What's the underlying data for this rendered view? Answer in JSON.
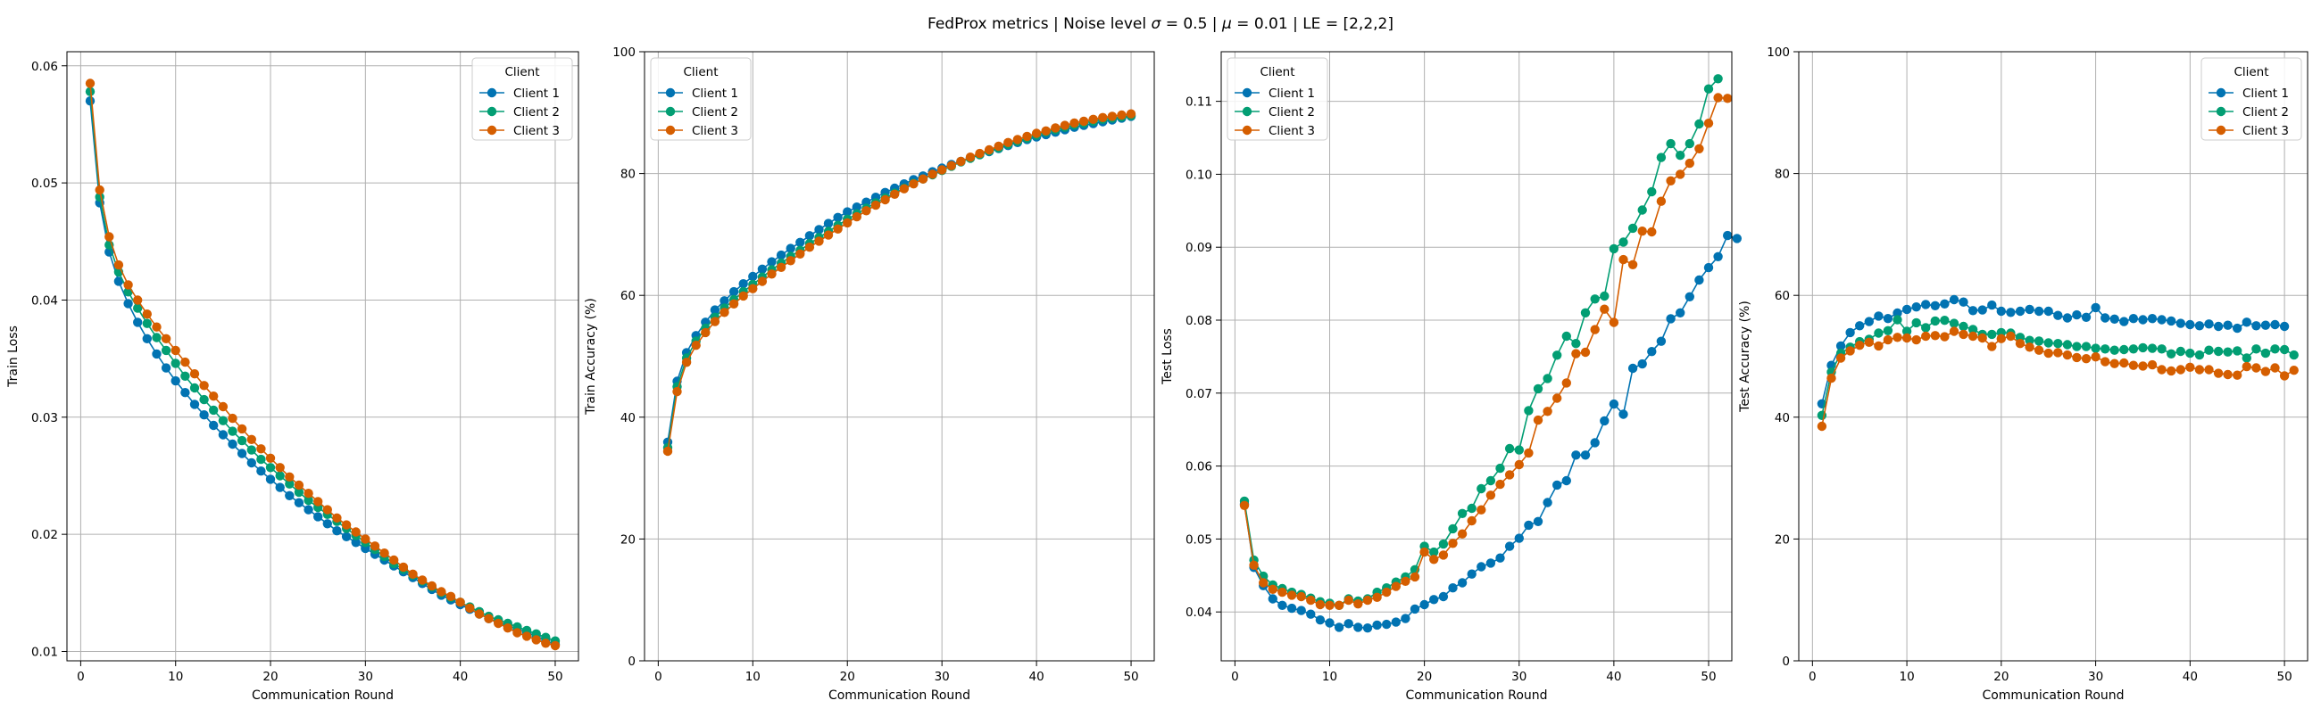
{
  "figure": {
    "suptitle_parts": [
      {
        "t": "FedProx metrics | Noise level ",
        "it": false
      },
      {
        "t": "σ",
        "it": true
      },
      {
        "t": " = 0.5 | ",
        "it": false
      },
      {
        "t": "μ",
        "it": true
      },
      {
        "t": " = 0.01 | LE = [2,2,2]",
        "it": false
      }
    ],
    "colors": {
      "Client 1": "#0173b2",
      "Client 2": "#029e73",
      "Client 3": "#d55e00"
    }
  },
  "chart_data": [
    {
      "type": "line",
      "title": "",
      "xlabel": "Communication Round",
      "ylabel": "Train Loss",
      "xlim": [
        -1.45,
        52.45
      ],
      "ylim": [
        0.0092,
        0.0612
      ],
      "xticks": [
        0,
        10,
        20,
        30,
        40,
        50
      ],
      "yticks": [
        0.01,
        0.02,
        0.03,
        0.04,
        0.05,
        0.06
      ],
      "ytick_labels": [
        "0.01",
        "0.02",
        "0.03",
        "0.04",
        "0.05",
        "0.06"
      ],
      "legend": {
        "title": "Client",
        "position": "top-right"
      },
      "series": [
        {
          "name": "Client 1",
          "values": [
            0.057,
            0.0483,
            0.0441,
            0.0416,
            0.0397,
            0.0381,
            0.0367,
            0.0354,
            0.0342,
            0.0331,
            0.0321,
            0.0311,
            0.0302,
            0.0293,
            0.0285,
            0.0277,
            0.0269,
            0.0261,
            0.0254,
            0.0247,
            0.024,
            0.0233,
            0.0227,
            0.0221,
            0.0215,
            0.0209,
            0.0203,
            0.0198,
            0.0193,
            0.0188,
            0.0183,
            0.0178,
            0.0173,
            0.0168,
            0.0163,
            0.0158,
            0.0153,
            0.0148,
            0.0144,
            0.014,
            0.0136,
            0.0132,
            0.0128,
            0.0125,
            0.0122,
            0.0119,
            0.0116,
            0.0113,
            0.0109,
            0.0106
          ]
        },
        {
          "name": "Client 2",
          "values": [
            0.0578,
            0.0488,
            0.0447,
            0.0424,
            0.0407,
            0.0393,
            0.038,
            0.0368,
            0.0357,
            0.0346,
            0.0335,
            0.0325,
            0.0315,
            0.0306,
            0.0297,
            0.0288,
            0.028,
            0.0272,
            0.0264,
            0.0257,
            0.025,
            0.0243,
            0.0236,
            0.0229,
            0.0223,
            0.0217,
            0.0211,
            0.0205,
            0.0199,
            0.0193,
            0.0187,
            0.0181,
            0.0175,
            0.017,
            0.0165,
            0.016,
            0.0155,
            0.015,
            0.0146,
            0.0142,
            0.0138,
            0.0134,
            0.013,
            0.0127,
            0.0124,
            0.0121,
            0.0118,
            0.0115,
            0.0112,
            0.0109
          ]
        },
        {
          "name": "Client 3",
          "values": [
            0.0585,
            0.0494,
            0.0454,
            0.043,
            0.0413,
            0.04,
            0.0388,
            0.0377,
            0.0367,
            0.0357,
            0.0347,
            0.0337,
            0.0327,
            0.0318,
            0.0309,
            0.0299,
            0.029,
            0.0281,
            0.0273,
            0.0265,
            0.0257,
            0.0249,
            0.0242,
            0.0235,
            0.0228,
            0.0221,
            0.0214,
            0.0208,
            0.0202,
            0.0196,
            0.019,
            0.0184,
            0.0178,
            0.0172,
            0.0166,
            0.0161,
            0.0156,
            0.0151,
            0.0147,
            0.0142,
            0.0137,
            0.0132,
            0.0128,
            0.0124,
            0.012,
            0.0116,
            0.0113,
            0.011,
            0.0107,
            0.0105
          ]
        }
      ]
    },
    {
      "type": "line",
      "title": "",
      "xlabel": "Communication Round",
      "ylabel": "Train Accuracy (%)",
      "xlim": [
        -1.45,
        52.45
      ],
      "ylim": [
        0,
        100
      ],
      "xticks": [
        0,
        10,
        20,
        30,
        40,
        50
      ],
      "yticks": [
        0,
        20,
        40,
        60,
        80,
        100
      ],
      "ytick_labels": [
        "0",
        "20",
        "40",
        "60",
        "80",
        "100"
      ],
      "legend": {
        "title": "Client",
        "position": "top-left"
      },
      "series": [
        {
          "name": "Client 1",
          "values": [
            35.9,
            45.9,
            50.6,
            53.4,
            55.6,
            57.6,
            59.1,
            60.6,
            61.9,
            63.1,
            64.3,
            65.5,
            66.6,
            67.7,
            68.7,
            69.8,
            70.8,
            71.8,
            72.8,
            73.7,
            74.5,
            75.3,
            76.1,
            76.9,
            77.6,
            78.3,
            79.0,
            79.6,
            80.3,
            80.9,
            81.5,
            82.0,
            82.6,
            83.1,
            83.6,
            84.1,
            84.6,
            85.1,
            85.6,
            86.0,
            86.4,
            86.8,
            87.2,
            87.6,
            87.9,
            88.2,
            88.5,
            88.8,
            89.1,
            89.4
          ]
        },
        {
          "name": "Client 2",
          "values": [
            35.0,
            45.0,
            49.7,
            52.5,
            54.6,
            56.4,
            57.9,
            59.3,
            60.6,
            61.8,
            63.0,
            64.2,
            65.3,
            66.4,
            67.4,
            68.5,
            69.5,
            70.5,
            71.5,
            72.5,
            73.4,
            74.3,
            75.2,
            76.0,
            76.8,
            77.6,
            78.4,
            79.1,
            79.8,
            80.5,
            81.2,
            81.9,
            82.5,
            83.1,
            83.7,
            84.2,
            84.8,
            85.3,
            85.8,
            86.3,
            86.8,
            87.2,
            87.6,
            88.0,
            88.3,
            88.6,
            88.9,
            89.1,
            89.3,
            89.5
          ]
        },
        {
          "name": "Client 3",
          "values": [
            34.4,
            44.2,
            49.0,
            51.8,
            53.9,
            55.7,
            57.2,
            58.6,
            59.9,
            61.1,
            62.3,
            63.5,
            64.6,
            65.7,
            66.8,
            67.9,
            68.9,
            69.9,
            70.9,
            71.9,
            72.9,
            73.9,
            74.8,
            75.7,
            76.6,
            77.5,
            78.3,
            79.1,
            79.9,
            80.6,
            81.3,
            82.0,
            82.7,
            83.3,
            83.9,
            84.5,
            85.1,
            85.6,
            86.1,
            86.6,
            87.0,
            87.5,
            87.9,
            88.3,
            88.6,
            88.9,
            89.2,
            89.4,
            89.6,
            89.8
          ]
        }
      ]
    },
    {
      "type": "line",
      "title": "",
      "xlabel": "Communication Round",
      "ylabel": "Test Loss",
      "xlim": [
        -1.45,
        52.45
      ],
      "ylim": [
        0.0333,
        0.1168
      ],
      "xticks": [
        0,
        10,
        20,
        30,
        40,
        50
      ],
      "yticks": [
        0.04,
        0.05,
        0.06,
        0.07,
        0.08,
        0.09,
        0.1,
        0.11
      ],
      "ytick_labels": [
        "0.04",
        "0.05",
        "0.06",
        "0.07",
        "0.08",
        "0.09",
        "0.10",
        "0.11"
      ],
      "legend": {
        "title": "Client",
        "position": "top-left"
      },
      "series": [
        {
          "name": "Client 1",
          "values": [
            0.0548,
            0.0461,
            0.0436,
            0.0418,
            0.0409,
            0.0405,
            0.0402,
            0.0397,
            0.0389,
            0.0385,
            0.0379,
            0.0384,
            0.0379,
            0.0378,
            0.0382,
            0.0383,
            0.0386,
            0.0391,
            0.0404,
            0.041,
            0.0417,
            0.0421,
            0.0433,
            0.044,
            0.0452,
            0.0462,
            0.0467,
            0.0474,
            0.049,
            0.0501,
            0.0519,
            0.0524,
            0.055,
            0.0574,
            0.058,
            0.0615,
            0.0615,
            0.0632,
            0.0662,
            0.0685,
            0.0671,
            0.0734,
            0.074,
            0.0757,
            0.0771,
            0.0802,
            0.081,
            0.0832,
            0.0855,
            0.0872,
            0.0887,
            0.0916,
            0.0912
          ]
        },
        {
          "name": "Client 2",
          "values": [
            0.0552,
            0.0471,
            0.0449,
            0.0437,
            0.0432,
            0.0427,
            0.0424,
            0.0419,
            0.0414,
            0.0412,
            0.0409,
            0.0418,
            0.0415,
            0.0418,
            0.0427,
            0.0433,
            0.0441,
            0.0448,
            0.0458,
            0.049,
            0.0482,
            0.0493,
            0.0514,
            0.0535,
            0.0542,
            0.0569,
            0.058,
            0.0597,
            0.0624,
            0.0622,
            0.0676,
            0.0706,
            0.072,
            0.0752,
            0.0778,
            0.0768,
            0.081,
            0.0829,
            0.0833,
            0.0898,
            0.0907,
            0.0926,
            0.0951,
            0.0976,
            0.1023,
            0.1042,
            0.1026,
            0.1042,
            0.1069,
            0.1117,
            0.1131
          ]
        },
        {
          "name": "Client 3",
          "values": [
            0.0546,
            0.0464,
            0.044,
            0.0431,
            0.0427,
            0.0423,
            0.0421,
            0.0416,
            0.041,
            0.0409,
            0.0409,
            0.0416,
            0.0411,
            0.0416,
            0.042,
            0.0427,
            0.0435,
            0.0442,
            0.0448,
            0.0482,
            0.0472,
            0.0478,
            0.0494,
            0.0507,
            0.0525,
            0.054,
            0.056,
            0.0575,
            0.0588,
            0.0602,
            0.0618,
            0.0663,
            0.0675,
            0.0693,
            0.0714,
            0.0754,
            0.0756,
            0.0787,
            0.0815,
            0.0797,
            0.0883,
            0.0876,
            0.0922,
            0.0921,
            0.0963,
            0.0991,
            0.1,
            0.1015,
            0.1035,
            0.107,
            0.1105,
            0.1104
          ]
        }
      ]
    },
    {
      "type": "line",
      "title": "",
      "xlabel": "Communication Round",
      "ylabel": "Test Accuracy (%)",
      "xlim": [
        -1.45,
        52.45
      ],
      "ylim": [
        0,
        100
      ],
      "xticks": [
        0,
        10,
        20,
        30,
        40,
        50
      ],
      "yticks": [
        0,
        20,
        40,
        60,
        80,
        100
      ],
      "ytick_labels": [
        "0",
        "20",
        "40",
        "60",
        "80",
        "100"
      ],
      "legend": {
        "title": "Client",
        "position": "top-right"
      },
      "series": [
        {
          "name": "Client 1",
          "values": [
            42.2,
            48.5,
            51.7,
            53.9,
            55.0,
            55.7,
            56.6,
            56.2,
            57.1,
            57.7,
            58.1,
            58.5,
            58.3,
            58.6,
            59.3,
            58.9,
            57.5,
            57.6,
            58.4,
            57.4,
            57.2,
            57.4,
            57.7,
            57.4,
            57.4,
            56.7,
            56.3,
            56.8,
            56.4,
            58.0,
            56.3,
            56.1,
            55.7,
            56.2,
            56.0,
            56.2,
            56.0,
            55.8,
            55.4,
            55.2,
            55.0,
            55.3,
            54.9,
            55.1,
            54.6,
            55.6,
            55.0,
            55.1,
            55.2,
            54.9
          ]
        },
        {
          "name": "Client 2",
          "values": [
            40.3,
            47.4,
            50.5,
            51.5,
            52.4,
            52.8,
            53.8,
            54.2,
            56.0,
            54.1,
            55.5,
            54.7,
            55.8,
            55.9,
            55.4,
            54.9,
            54.4,
            53.6,
            53.6,
            53.9,
            53.8,
            53.1,
            52.6,
            52.5,
            52.2,
            52.1,
            51.9,
            51.6,
            51.6,
            51.3,
            51.2,
            51.0,
            51.1,
            51.2,
            51.4,
            51.3,
            51.2,
            50.4,
            50.8,
            50.5,
            50.2,
            51.0,
            50.8,
            50.7,
            50.9,
            49.7,
            51.2,
            50.5,
            51.2,
            51.1,
            50.2
          ]
        },
        {
          "name": "Client 3",
          "values": [
            38.5,
            46.4,
            49.7,
            50.9,
            51.8,
            52.3,
            51.7,
            52.7,
            53.1,
            53.0,
            52.7,
            53.3,
            53.4,
            53.2,
            54.1,
            53.6,
            53.3,
            53.0,
            51.6,
            52.9,
            53.3,
            52.1,
            51.5,
            51.0,
            50.5,
            50.6,
            50.2,
            49.8,
            49.6,
            49.9,
            49.1,
            48.8,
            48.9,
            48.5,
            48.4,
            48.6,
            47.8,
            47.6,
            47.8,
            48.2,
            47.8,
            47.8,
            47.2,
            47.0,
            46.9,
            48.3,
            48.1,
            47.5,
            48.1,
            46.8,
            47.7
          ]
        }
      ]
    }
  ]
}
